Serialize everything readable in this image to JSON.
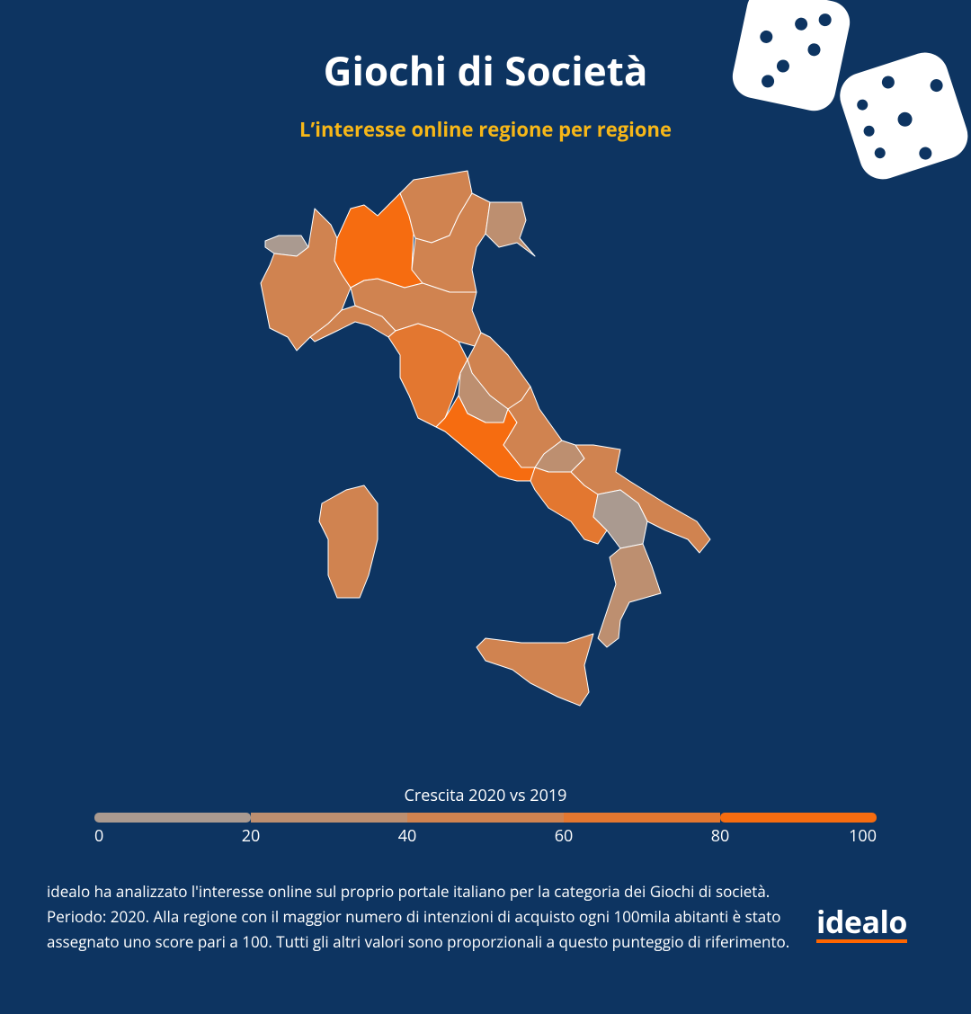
{
  "header": {
    "title": "Giochi di Società",
    "subtitle": "L’interesse online regione per regione"
  },
  "chart_data": {
    "type": "choropleth",
    "values": [
      10,
      45,
      100,
      45,
      45,
      30,
      50,
      55,
      65,
      45,
      30,
      90,
      45,
      30,
      70,
      45,
      10,
      30,
      45,
      45
    ],
    "colorscale": [
      "#a0a0a0",
      "#ff6600"
    ],
    "clim": [
      0,
      100
    ],
    "legend": {
      "title": "Crescita 2020 vs 2019",
      "ticks": [
        0,
        20,
        40,
        60,
        80,
        100
      ]
    }
  },
  "footer": {
    "text": "idealo ha analizzato l'interesse online sul proprio portale italiano per la categoria dei Giochi di società. Periodo: 2020. Alla regione con il maggior numero di intenzioni di acquisto ogni 100mila abitanti è stato assegnato uno score pari a 100. Tutti gli altri valori sono proporzionali a questo punteggio di riferimento.",
    "logo": "idealo"
  }
}
